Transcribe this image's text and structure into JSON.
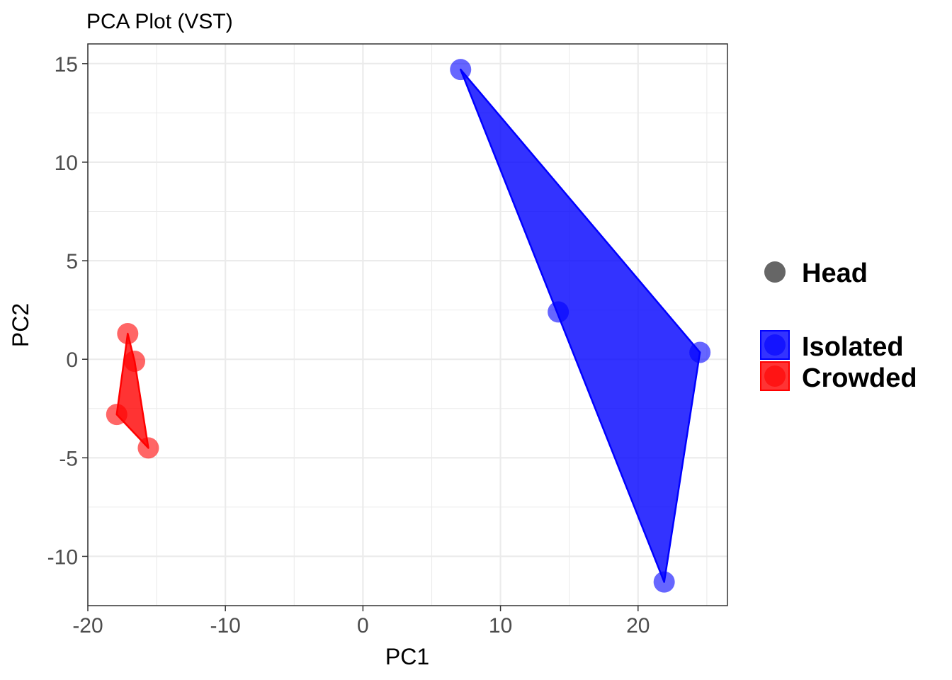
{
  "chart_data": {
    "type": "scatter",
    "title": "PCA Plot (VST)",
    "xlabel": "PC1",
    "ylabel": "PC2",
    "xlim": [
      -20,
      26.5
    ],
    "ylim": [
      -12.5,
      16
    ],
    "x_ticks": [
      -20,
      -10,
      0,
      10,
      20
    ],
    "y_ticks": [
      15,
      10,
      5,
      0,
      -5,
      -10
    ],
    "x_tick_labels": [
      "-20",
      "-10",
      "0",
      "10",
      "20"
    ],
    "y_tick_labels": [
      "15",
      "10",
      "5",
      "0",
      "-5",
      "-10"
    ],
    "grid": true,
    "series": [
      {
        "name": "Isolated",
        "color": "#0000ff",
        "points": [
          {
            "x": 7.1,
            "y": 14.7
          },
          {
            "x": 14.2,
            "y": 2.4
          },
          {
            "x": 24.5,
            "y": 0.35
          },
          {
            "x": 21.9,
            "y": -11.3
          }
        ]
      },
      {
        "name": "Crowded",
        "color": "#ff0000",
        "points": [
          {
            "x": -17.1,
            "y": 1.3
          },
          {
            "x": -16.6,
            "y": -0.1
          },
          {
            "x": -17.9,
            "y": -2.8
          },
          {
            "x": -15.6,
            "y": -4.5
          }
        ]
      }
    ],
    "legend": {
      "position": "right",
      "shape_label": "Head",
      "entries": [
        "Isolated",
        "Crowded"
      ]
    }
  }
}
